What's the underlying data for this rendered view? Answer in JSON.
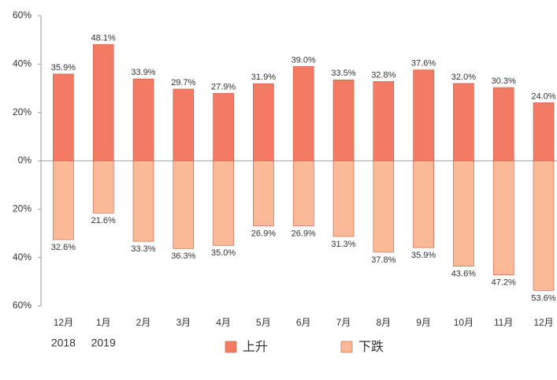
{
  "chart_data": {
    "type": "diverging_bar",
    "categories": [
      "12月",
      "1月",
      "2月",
      "3月",
      "4月",
      "5月",
      "6月",
      "7月",
      "8月",
      "9月",
      "10月",
      "11月",
      "12月"
    ],
    "years": [
      "2018",
      "2019",
      null,
      null,
      null,
      null,
      null,
      null,
      null,
      null,
      null,
      null,
      null
    ],
    "series": [
      {
        "name": "上升",
        "color": "#f47b63",
        "values": [
          35.9,
          48.1,
          33.9,
          29.7,
          27.9,
          31.9,
          39.0,
          33.5,
          32.8,
          37.6,
          32.0,
          30.3,
          24.0
        ],
        "value_labels": [
          "35.9%",
          "48.1%",
          "33.9%",
          "29.7%",
          "27.9%",
          "31.9%",
          "39.0%",
          "33.5%",
          "32.8%",
          "37.6%",
          "32.0%",
          "30.3%",
          "24.0%"
        ]
      },
      {
        "name": "下跌",
        "color": "#fbba97",
        "values": [
          -32.6,
          -21.6,
          -33.3,
          -36.3,
          -35.0,
          -26.9,
          -26.9,
          -31.3,
          -37.8,
          -35.9,
          -43.6,
          -47.2,
          -53.6
        ],
        "value_labels": [
          "32.6%",
          "21.6%",
          "33.3%",
          "36.3%",
          "35.0%",
          "26.9%",
          "26.9%",
          "31.3%",
          "37.8%",
          "35.9%",
          "43.6%",
          "47.2%",
          "53.6%"
        ]
      }
    ],
    "ylim": [
      -60,
      60
    ],
    "yticks": [
      {
        "value": 60,
        "label": "60%"
      },
      {
        "value": 40,
        "label": "40%"
      },
      {
        "value": 20,
        "label": "20%"
      },
      {
        "value": 0,
        "label": "0%"
      },
      {
        "value": -20,
        "label": "20%"
      },
      {
        "value": -40,
        "label": "40%"
      },
      {
        "value": -60,
        "label": "60%"
      }
    ],
    "legend": "bottom"
  }
}
